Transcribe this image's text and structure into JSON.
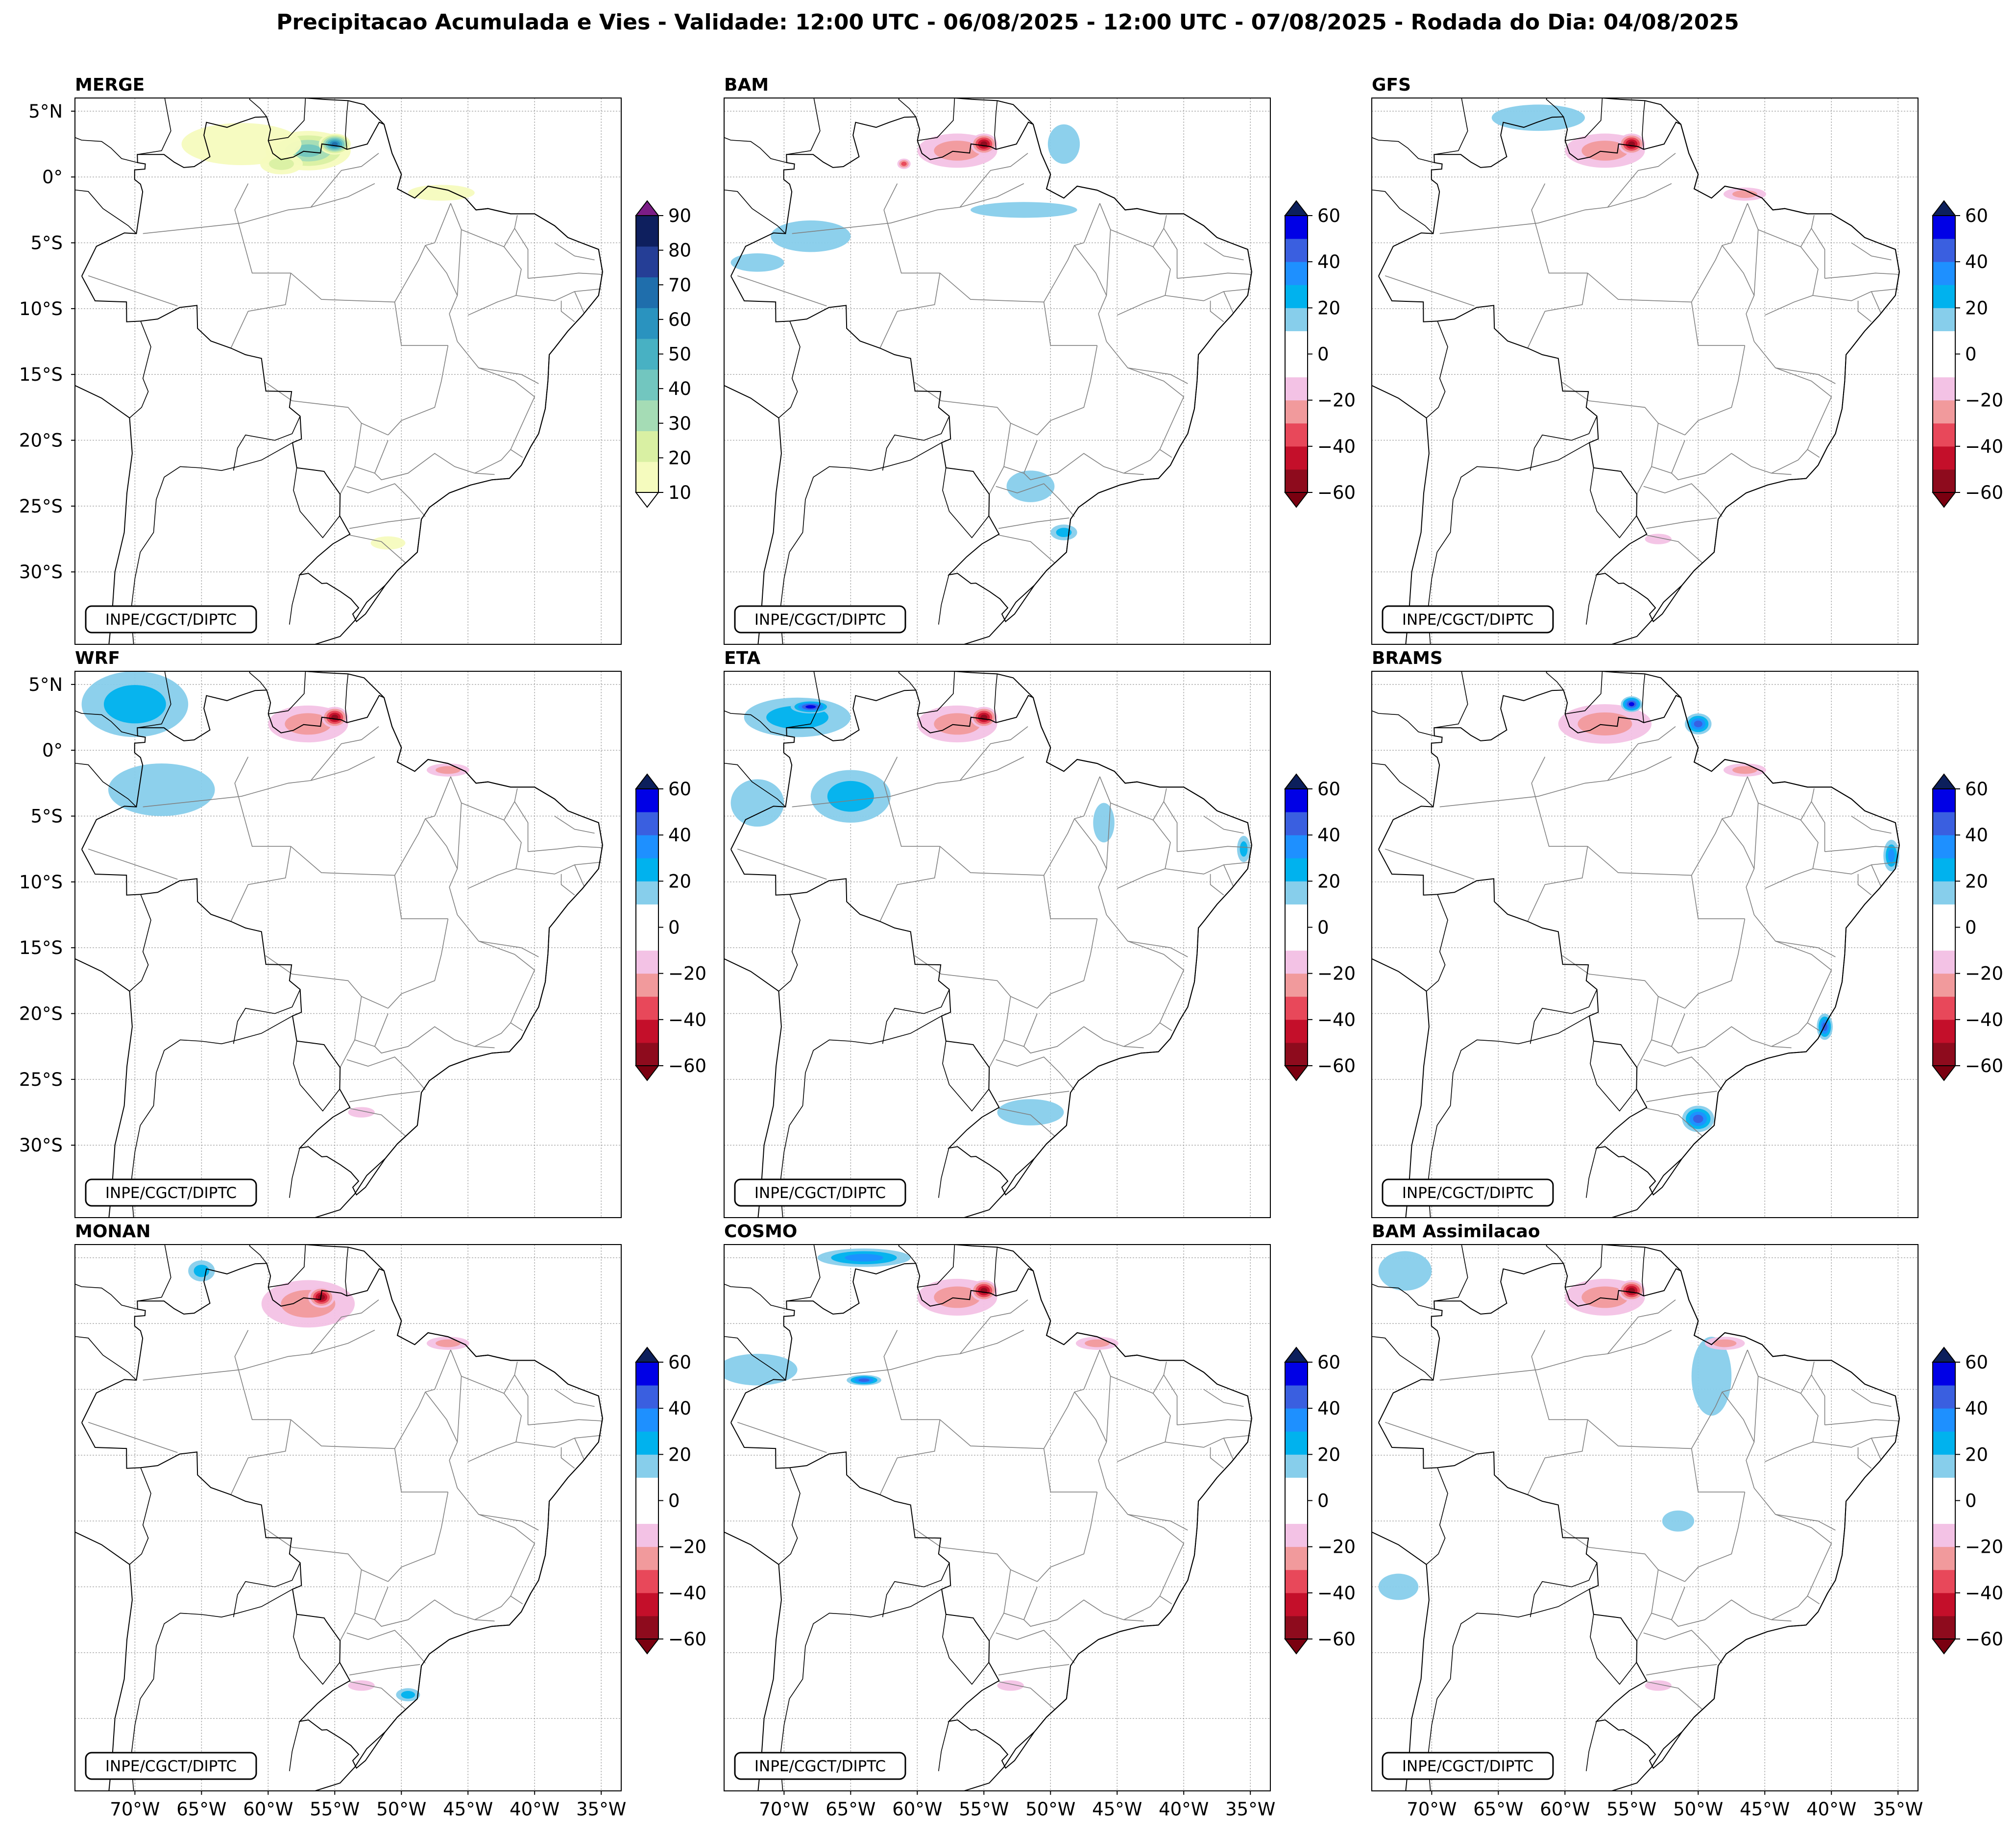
{
  "title": "Precipitacao Acumulada e Vies - Validade: 12:00 UTC - 06/08/2025 - 12:00 UTC - 07/08/2025 - Rodada do Dia: 04/08/2025",
  "credit": "INPE/CGCT/DIPTC",
  "colors": {
    "merge": [
      "#f5fbbe",
      "#d9f0a3",
      "#a5dcb5",
      "#72c6bf",
      "#48b1c3",
      "#2a93bf",
      "#1f6eac",
      "#253e96",
      "#0e1f5e"
    ],
    "merge_over": "#7b1d86",
    "merge_under": "#ffffff",
    "bias": [
      "#8e0b1d",
      "#c40f2a",
      "#e8485a",
      "#f19a9c",
      "#f3c2e5",
      "#ffffff",
      "#ffffff",
      "#87ceeb",
      "#00b2ee",
      "#1e90ff",
      "#3a5fe0",
      "#0000e6"
    ],
    "bias_under": "#7a0010",
    "bias_over": "#0c1f5c",
    "border": "#000000",
    "state": "#808080",
    "grid": "#9a9a9a"
  },
  "chart_data": [
    {
      "type": "map",
      "title": "MERGE",
      "variable": "precipitation_mm",
      "colorbar": {
        "levels": [
          10,
          20,
          30,
          40,
          50,
          60,
          70,
          80,
          90
        ],
        "extend": "both"
      },
      "lon_ticks": [
        -70,
        -65,
        -60,
        -55,
        -50,
        -45,
        -40,
        -35
      ],
      "lat_ticks": [
        5,
        0,
        -5,
        -10,
        -15,
        -20,
        -25,
        -30
      ],
      "extent": {
        "lon": [
          -74.5,
          -33.5
        ],
        "lat": [
          -35.5,
          6
        ]
      },
      "features": [
        {
          "lon": -57,
          "lat": 2,
          "value": 45,
          "rx": 3.2,
          "ry": 1.5
        },
        {
          "lon": -62,
          "lat": 2.5,
          "value": 15,
          "rx": 4.5,
          "ry": 1.6
        },
        {
          "lon": -55,
          "lat": 2.5,
          "value": 75,
          "rx": 1.2,
          "ry": 0.8
        },
        {
          "lon": -59,
          "lat": 1,
          "value": 25,
          "rx": 1.6,
          "ry": 0.8
        },
        {
          "lon": -47,
          "lat": -1.2,
          "value": 18,
          "rx": 2.5,
          "ry": 0.6
        },
        {
          "lon": -51,
          "lat": -27.8,
          "value": 15,
          "rx": 1.3,
          "ry": 0.5
        }
      ]
    },
    {
      "type": "map",
      "title": "BAM",
      "variable": "bias_mm",
      "colorbar": {
        "levels": [
          -60,
          -40,
          -20,
          0,
          20,
          40,
          60
        ],
        "extend": "both"
      },
      "lon_ticks": [
        -70,
        -65,
        -60,
        -55,
        -50,
        -45,
        -40,
        -35
      ],
      "lat_ticks": [
        5,
        0,
        -5,
        -10,
        -15,
        -20,
        -25,
        -30
      ],
      "extent": {
        "lon": [
          -74.5,
          -33.5
        ],
        "lat": [
          -35.5,
          6
        ]
      },
      "features": [
        {
          "lon": -57,
          "lat": 2,
          "value": -30,
          "rx": 3,
          "ry": 1.3
        },
        {
          "lon": -55,
          "lat": 2.5,
          "value": -55,
          "rx": 1,
          "ry": 0.8
        },
        {
          "lon": -61,
          "lat": 1,
          "value": -40,
          "rx": 0.5,
          "ry": 0.4
        },
        {
          "lon": -68,
          "lat": -4.5,
          "value": 15,
          "rx": 3,
          "ry": 1.2
        },
        {
          "lon": -72,
          "lat": -6.5,
          "value": 15,
          "rx": 2,
          "ry": 0.7
        },
        {
          "lon": -52,
          "lat": -2.5,
          "value": 15,
          "rx": 4,
          "ry": 0.6
        },
        {
          "lon": -49,
          "lat": 2.5,
          "value": 15,
          "rx": 1.2,
          "ry": 1.5
        },
        {
          "lon": -51.5,
          "lat": -23.5,
          "value": 15,
          "rx": 1.8,
          "ry": 1.2
        },
        {
          "lon": -49,
          "lat": -27,
          "value": 25,
          "rx": 1,
          "ry": 0.6
        }
      ]
    },
    {
      "type": "map",
      "title": "GFS",
      "variable": "bias_mm",
      "colorbar": {
        "levels": [
          -60,
          -40,
          -20,
          0,
          20,
          40,
          60
        ],
        "extend": "both"
      },
      "lon_ticks": [
        -70,
        -65,
        -60,
        -55,
        -50,
        -45,
        -40,
        -35
      ],
      "lat_ticks": [
        5,
        0,
        -5,
        -10,
        -15,
        -20,
        -25,
        -30
      ],
      "extent": {
        "lon": [
          -74.5,
          -33.5
        ],
        "lat": [
          -35.5,
          6
        ]
      },
      "features": [
        {
          "lon": -57,
          "lat": 2,
          "value": -30,
          "rx": 3,
          "ry": 1.3
        },
        {
          "lon": -55,
          "lat": 2.5,
          "value": -55,
          "rx": 1,
          "ry": 0.8
        },
        {
          "lon": -62,
          "lat": 4.5,
          "value": 20,
          "rx": 3.5,
          "ry": 1
        },
        {
          "lon": -46.5,
          "lat": -1.3,
          "value": -30,
          "rx": 1.6,
          "ry": 0.5
        },
        {
          "lon": -53,
          "lat": -27.5,
          "value": -15,
          "rx": 1,
          "ry": 0.4
        }
      ]
    },
    {
      "type": "map",
      "title": "WRF",
      "variable": "bias_mm",
      "colorbar": {
        "levels": [
          -60,
          -40,
          -20,
          0,
          20,
          40,
          60
        ],
        "extend": "both"
      },
      "lon_ticks": [
        -70,
        -65,
        -60,
        -55,
        -50,
        -45,
        -40,
        -35
      ],
      "lat_ticks": [
        5,
        0,
        -5,
        -10,
        -15,
        -20,
        -25,
        -30
      ],
      "extent": {
        "lon": [
          -74.5,
          -33.5
        ],
        "lat": [
          -35.5,
          6
        ]
      },
      "features": [
        {
          "lon": -70,
          "lat": 3.5,
          "value": 25,
          "rx": 4,
          "ry": 2.5
        },
        {
          "lon": -68,
          "lat": -3,
          "value": 15,
          "rx": 4,
          "ry": 2
        },
        {
          "lon": -57,
          "lat": 2,
          "value": -30,
          "rx": 3,
          "ry": 1.4
        },
        {
          "lon": -55,
          "lat": 2.5,
          "value": -55,
          "rx": 1,
          "ry": 0.8
        },
        {
          "lon": -46.5,
          "lat": -1.5,
          "value": -30,
          "rx": 1.6,
          "ry": 0.5
        },
        {
          "lon": -53,
          "lat": -27.5,
          "value": -15,
          "rx": 1,
          "ry": 0.4
        }
      ]
    },
    {
      "type": "map",
      "title": "ETA",
      "variable": "bias_mm",
      "colorbar": {
        "levels": [
          -60,
          -40,
          -20,
          0,
          20,
          40,
          60
        ],
        "extend": "both"
      },
      "lon_ticks": [
        -70,
        -65,
        -60,
        -55,
        -50,
        -45,
        -40,
        -35
      ],
      "lat_ticks": [
        5,
        0,
        -5,
        -10,
        -15,
        -20,
        -25,
        -30
      ],
      "extent": {
        "lon": [
          -74.5,
          -33.5
        ],
        "lat": [
          -35.5,
          6
        ]
      },
      "features": [
        {
          "lon": -69,
          "lat": 2.5,
          "value": 30,
          "rx": 4,
          "ry": 1.5
        },
        {
          "lon": -68,
          "lat": 3.3,
          "value": 55,
          "rx": 1.5,
          "ry": 0.5
        },
        {
          "lon": -65,
          "lat": -3.5,
          "value": 30,
          "rx": 3,
          "ry": 2
        },
        {
          "lon": -72,
          "lat": -4,
          "value": 20,
          "rx": 2,
          "ry": 1.8
        },
        {
          "lon": -57,
          "lat": 2,
          "value": -30,
          "rx": 3,
          "ry": 1.4
        },
        {
          "lon": -55,
          "lat": 2.5,
          "value": -55,
          "rx": 1,
          "ry": 0.8
        },
        {
          "lon": -46,
          "lat": -5.5,
          "value": 15,
          "rx": 0.8,
          "ry": 1.5
        },
        {
          "lon": -35.5,
          "lat": -7.5,
          "value": 25,
          "rx": 0.5,
          "ry": 1
        },
        {
          "lon": -51.5,
          "lat": -27.5,
          "value": 15,
          "rx": 2.5,
          "ry": 1
        }
      ]
    },
    {
      "type": "map",
      "title": "BRAMS",
      "variable": "bias_mm",
      "colorbar": {
        "levels": [
          -60,
          -40,
          -20,
          0,
          20,
          40,
          60
        ],
        "extend": "both"
      },
      "lon_ticks": [
        -70,
        -65,
        -60,
        -55,
        -50,
        -45,
        -40,
        -35
      ],
      "lat_ticks": [
        5,
        0,
        -5,
        -10,
        -15,
        -20,
        -25,
        -30
      ],
      "extent": {
        "lon": [
          -74.5,
          -33.5
        ],
        "lat": [
          -35.5,
          6
        ]
      },
      "features": [
        {
          "lon": -57,
          "lat": 2,
          "value": -30,
          "rx": 3.5,
          "ry": 1.5
        },
        {
          "lon": -55,
          "lat": 3.5,
          "value": 60,
          "rx": 0.8,
          "ry": 0.6
        },
        {
          "lon": -50,
          "lat": 2,
          "value": 45,
          "rx": 1,
          "ry": 0.8
        },
        {
          "lon": -35.5,
          "lat": -8,
          "value": 35,
          "rx": 0.6,
          "ry": 1.2
        },
        {
          "lon": -40.5,
          "lat": -21,
          "value": 45,
          "rx": 0.6,
          "ry": 1
        },
        {
          "lon": -50,
          "lat": -28,
          "value": 50,
          "rx": 1.2,
          "ry": 1
        },
        {
          "lon": -46.5,
          "lat": -1.5,
          "value": -30,
          "rx": 1.6,
          "ry": 0.5
        }
      ]
    },
    {
      "type": "map",
      "title": "MONAN",
      "variable": "bias_mm",
      "colorbar": {
        "levels": [
          -60,
          -40,
          -20,
          0,
          20,
          40,
          60
        ],
        "extend": "both"
      },
      "lon_ticks": [
        -70,
        -65,
        -60,
        -55,
        -50,
        -45,
        -40,
        -35
      ],
      "lat_ticks": [
        5,
        0,
        -5,
        -10,
        -15,
        -20,
        -25,
        -30
      ],
      "extent": {
        "lon": [
          -74.5,
          -33.5
        ],
        "lat": [
          -35.5,
          6
        ]
      },
      "features": [
        {
          "lon": -57,
          "lat": 1.5,
          "value": -30,
          "rx": 3.5,
          "ry": 1.8
        },
        {
          "lon": -56,
          "lat": 2,
          "value": -55,
          "rx": 1,
          "ry": 0.8
        },
        {
          "lon": -65,
          "lat": 4,
          "value": 25,
          "rx": 1,
          "ry": 0.8
        },
        {
          "lon": -46.5,
          "lat": -1.5,
          "value": -30,
          "rx": 1.6,
          "ry": 0.5
        },
        {
          "lon": -49.5,
          "lat": -28.2,
          "value": 30,
          "rx": 0.9,
          "ry": 0.5
        },
        {
          "lon": -53,
          "lat": -27.5,
          "value": -15,
          "rx": 1,
          "ry": 0.4
        }
      ]
    },
    {
      "type": "map",
      "title": "COSMO",
      "variable": "bias_mm",
      "colorbar": {
        "levels": [
          -60,
          -40,
          -20,
          0,
          20,
          40,
          60
        ],
        "extend": "both"
      },
      "lon_ticks": [
        -70,
        -65,
        -60,
        -55,
        -50,
        -45,
        -40,
        -35
      ],
      "lat_ticks": [
        5,
        0,
        -5,
        -10,
        -15,
        -20,
        -25,
        -30
      ],
      "extent": {
        "lon": [
          -74.5,
          -33.5
        ],
        "lat": [
          -35.5,
          6
        ]
      },
      "features": [
        {
          "lon": -64,
          "lat": 5,
          "value": 40,
          "rx": 3.5,
          "ry": 0.7
        },
        {
          "lon": -72,
          "lat": -3.5,
          "value": 20,
          "rx": 3,
          "ry": 1.2
        },
        {
          "lon": -64,
          "lat": -4.3,
          "value": 50,
          "rx": 1.3,
          "ry": 0.4
        },
        {
          "lon": -57,
          "lat": 2,
          "value": -30,
          "rx": 3,
          "ry": 1.4
        },
        {
          "lon": -55,
          "lat": 2.5,
          "value": -55,
          "rx": 1,
          "ry": 0.8
        },
        {
          "lon": -46.5,
          "lat": -1.5,
          "value": -30,
          "rx": 1.6,
          "ry": 0.5
        },
        {
          "lon": -53,
          "lat": -27.5,
          "value": -15,
          "rx": 1,
          "ry": 0.4
        }
      ]
    },
    {
      "type": "map",
      "title": "BAM Assimilacao",
      "variable": "bias_mm",
      "colorbar": {
        "levels": [
          -60,
          -40,
          -20,
          0,
          20,
          40,
          60
        ],
        "extend": "both"
      },
      "lon_ticks": [
        -70,
        -65,
        -60,
        -55,
        -50,
        -45,
        -40,
        -35
      ],
      "lat_ticks": [
        5,
        0,
        -5,
        -10,
        -15,
        -20,
        -25,
        -30
      ],
      "extent": {
        "lon": [
          -74.5,
          -33.5
        ],
        "lat": [
          -35.5,
          6
        ]
      },
      "features": [
        {
          "lon": -57,
          "lat": 2,
          "value": -30,
          "rx": 3,
          "ry": 1.4
        },
        {
          "lon": -55,
          "lat": 2.5,
          "value": -55,
          "rx": 1,
          "ry": 0.8
        },
        {
          "lon": -72,
          "lat": 4,
          "value": 15,
          "rx": 2,
          "ry": 1.5
        },
        {
          "lon": -49,
          "lat": -4,
          "value": 15,
          "rx": 1.5,
          "ry": 3
        },
        {
          "lon": -48,
          "lat": -1.5,
          "value": -25,
          "rx": 1.5,
          "ry": 0.5
        },
        {
          "lon": -72.5,
          "lat": -20,
          "value": 15,
          "rx": 1.5,
          "ry": 1
        },
        {
          "lon": -51.5,
          "lat": -15,
          "value": 15,
          "rx": 1.2,
          "ry": 0.8
        },
        {
          "lon": -53,
          "lat": -27.5,
          "value": -15,
          "rx": 1,
          "ry": 0.4
        }
      ]
    }
  ]
}
